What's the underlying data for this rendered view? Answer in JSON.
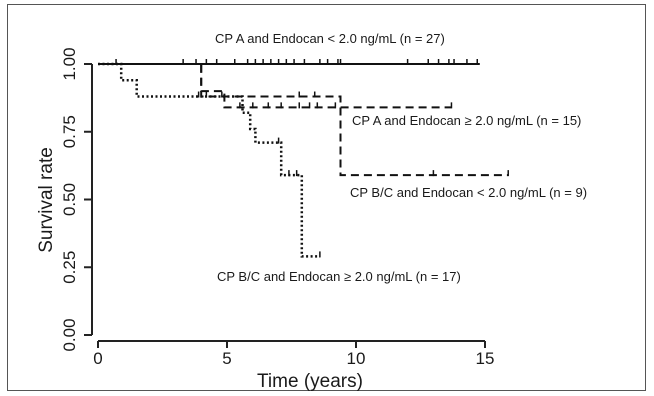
{
  "chart_data": {
    "type": "line",
    "step": true,
    "xlabel": "Time (years)",
    "ylabel": "Survival rate",
    "xlim": [
      0,
      16
    ],
    "ylim": [
      0,
      1
    ],
    "xticks": [
      "0",
      "5",
      "10",
      "15"
    ],
    "xtick_values": [
      0,
      5,
      10,
      15
    ],
    "yticks": [
      "0.00",
      "0.25",
      "0.50",
      "0.75",
      "1.00"
    ],
    "ytick_values": [
      0,
      0.25,
      0.5,
      0.75,
      1.0
    ],
    "grid": false,
    "series": [
      {
        "name": "CP A and Endocan < 2.0 ng/mL (n = 27)",
        "line_style": "solid",
        "steps": [
          [
            0,
            1.0
          ],
          [
            14.8,
            1.0
          ]
        ],
        "censored": [
          0.7,
          3.3,
          3.8,
          4.2,
          4.6,
          5.3,
          5.8,
          6.1,
          6.4,
          6.7,
          7.0,
          7.3,
          7.6,
          8.0,
          8.6,
          8.9,
          9.3,
          9.4,
          12.0,
          12.8,
          13.2,
          13.6,
          13.8,
          14.3,
          14.7
        ]
      },
      {
        "name": "CP A and Endocan ≥ 2.0 ng/mL (n = 15)",
        "line_style": "dashed",
        "steps": [
          [
            0,
            1.0
          ],
          [
            4.0,
            1.0
          ],
          [
            4.0,
            0.9
          ],
          [
            4.9,
            0.9
          ],
          [
            4.9,
            0.84
          ],
          [
            13.7,
            0.84
          ]
        ],
        "censored": [
          5.5,
          6.0,
          6.6,
          7.1,
          7.8,
          8.2,
          8.5,
          9.2,
          13.7
        ]
      },
      {
        "name": "CP B/C and Endocan < 2.0 ng/mL (n = 9)",
        "line_style": "dashed",
        "steps": [
          [
            0,
            1.0
          ],
          [
            4.0,
            1.0
          ],
          [
            4.0,
            0.88
          ],
          [
            9.4,
            0.88
          ],
          [
            9.4,
            0.59
          ],
          [
            15.9,
            0.59
          ]
        ],
        "censored": [
          4.8,
          7.8,
          8.4,
          13.0,
          15.9
        ]
      },
      {
        "name": "CP B/C and Endocan ≥ 2.0 ng/mL (n = 17)",
        "line_style": "dotted",
        "steps": [
          [
            0,
            1.0
          ],
          [
            0.9,
            1.0
          ],
          [
            0.9,
            0.94
          ],
          [
            1.5,
            0.94
          ],
          [
            1.5,
            0.88
          ],
          [
            5.6,
            0.88
          ],
          [
            5.6,
            0.82
          ],
          [
            5.9,
            0.82
          ],
          [
            5.9,
            0.76
          ],
          [
            6.1,
            0.76
          ],
          [
            6.1,
            0.71
          ],
          [
            7.1,
            0.71
          ],
          [
            7.1,
            0.59
          ],
          [
            7.9,
            0.59
          ],
          [
            7.9,
            0.29
          ],
          [
            8.6,
            0.29
          ]
        ],
        "censored": [
          3.9,
          4.2,
          7.0,
          7.4,
          7.7,
          8.6
        ]
      }
    ]
  }
}
